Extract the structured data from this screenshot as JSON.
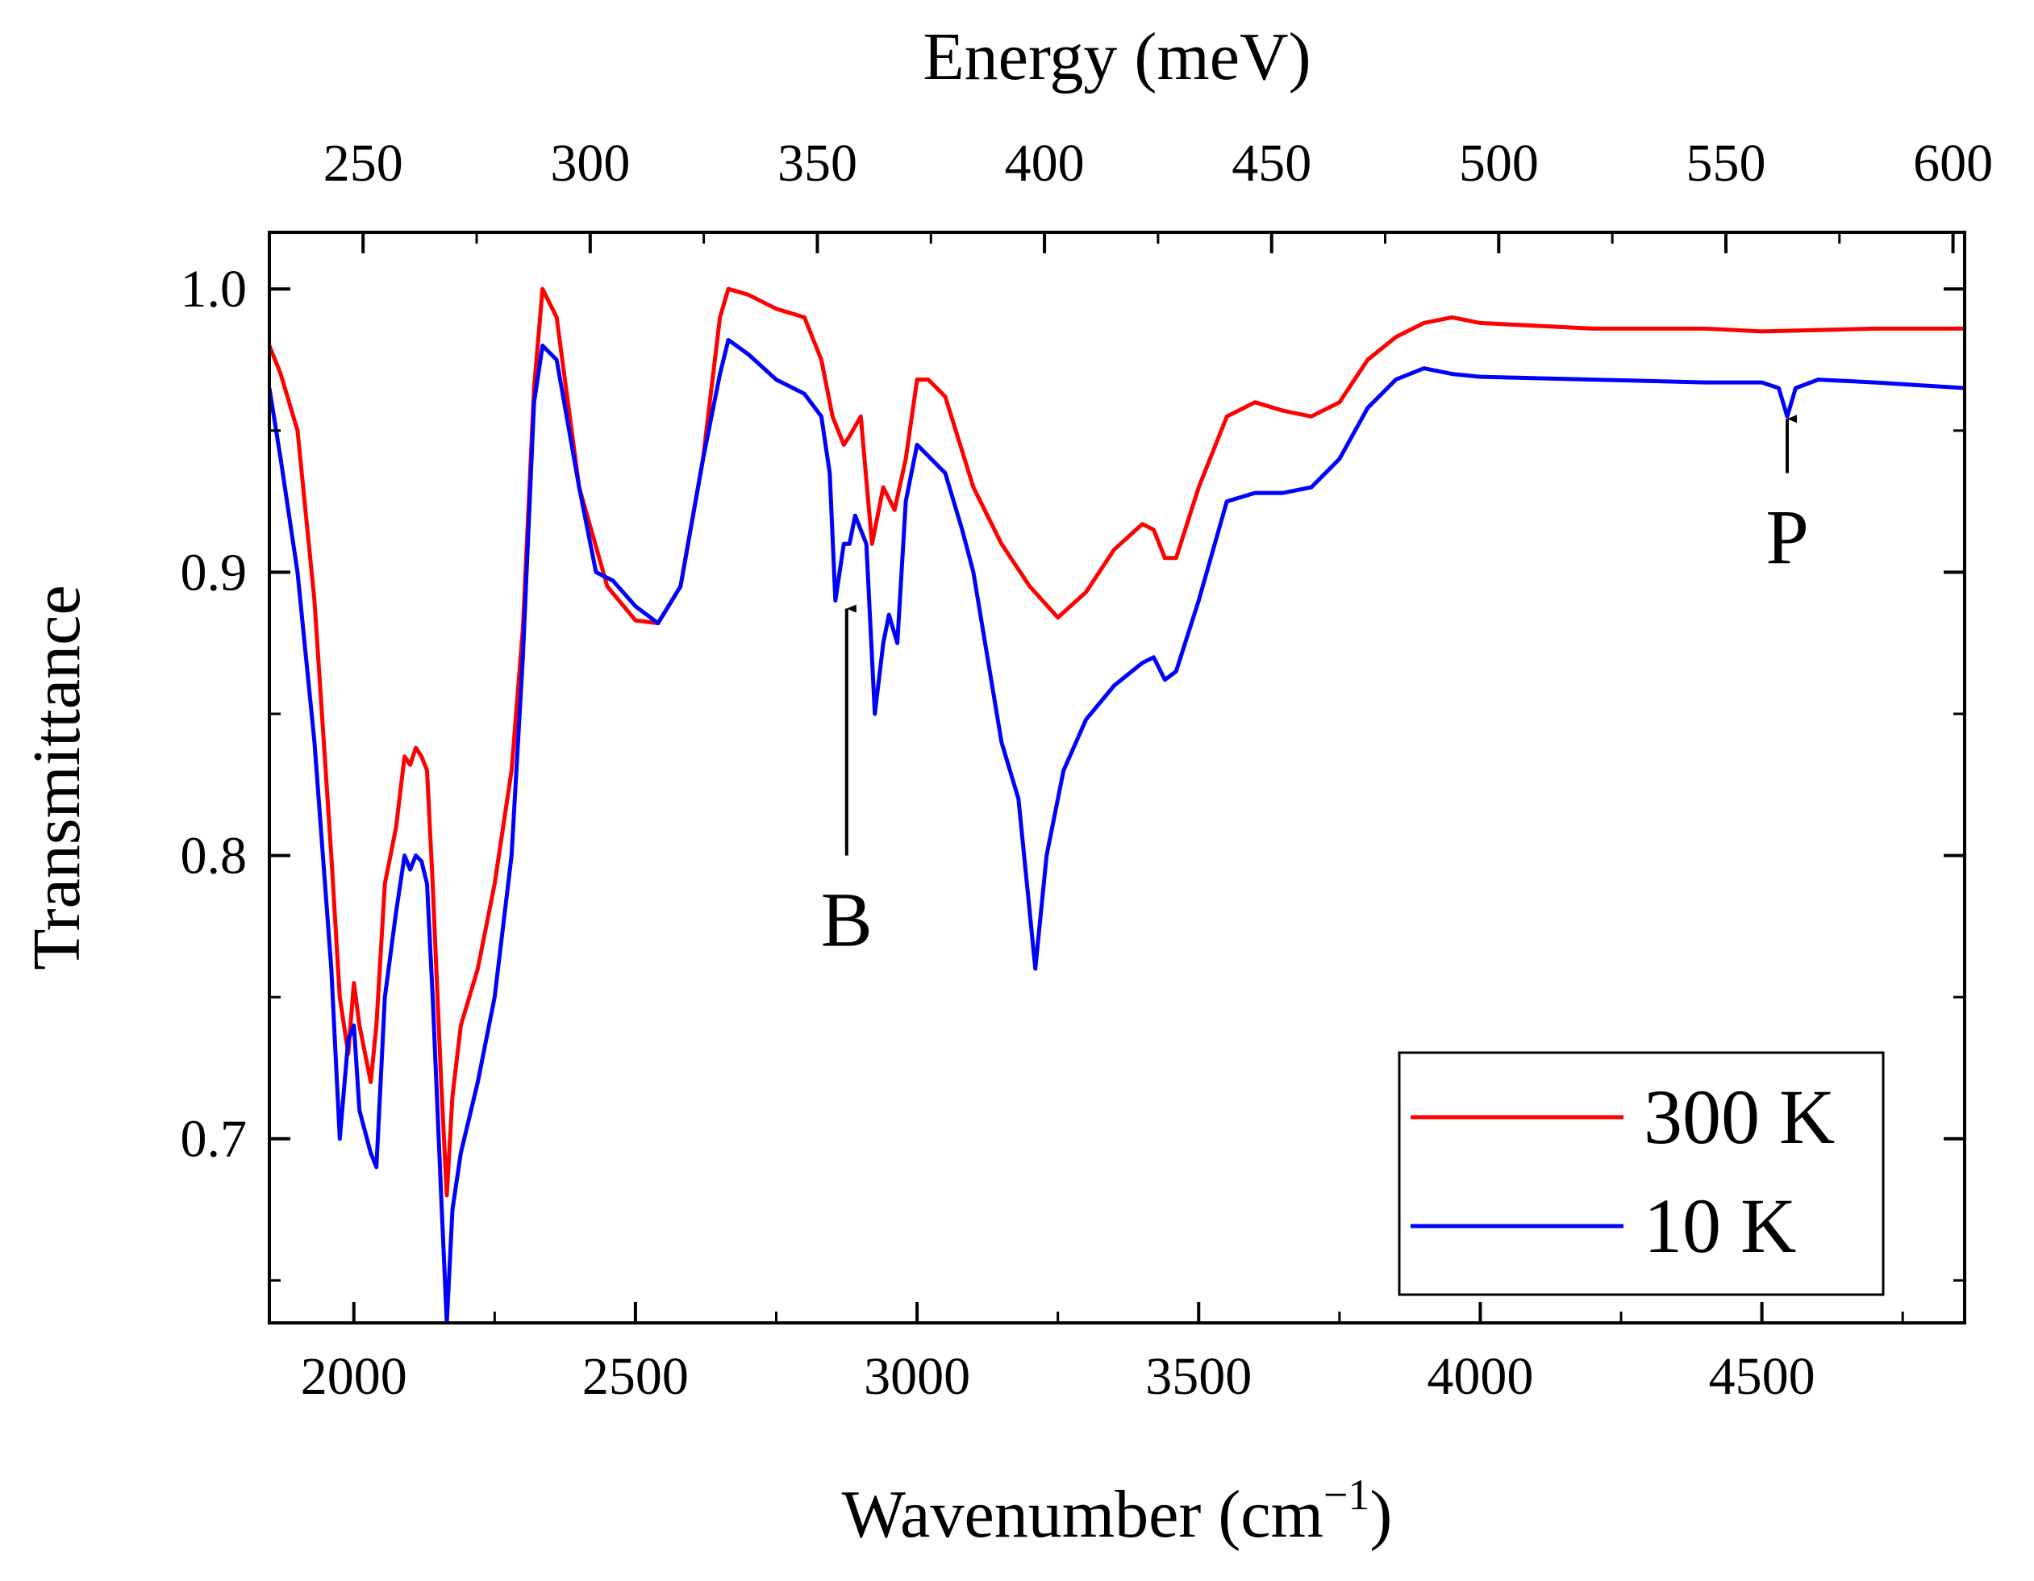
{
  "chart_data": {
    "type": "line",
    "xlabel": "Wavenumber (cm",
    "xlabel_sup": "−1",
    "xlabel_close": ")",
    "ylabel": "Transmittance",
    "top_axis_label": "Energy (meV)",
    "xlim": [
      1850,
      4860
    ],
    "ylim": [
      0.635,
      1.02
    ],
    "x_ticks": [
      2000,
      2500,
      3000,
      3500,
      4000,
      4500
    ],
    "x_tick_labels": [
      "2000",
      "2500",
      "3000",
      "3500",
      "4000",
      "4500"
    ],
    "y_ticks": [
      0.7,
      0.8,
      0.9,
      1.0
    ],
    "y_tick_labels": [
      "0.7",
      "0.8",
      "0.9",
      "1.0"
    ],
    "top_ticks_mev": [
      250,
      300,
      350,
      400,
      450,
      500,
      550,
      600
    ],
    "top_tick_labels": [
      "250",
      "300",
      "350",
      "400",
      "450",
      "500",
      "550",
      "600"
    ],
    "mev_per_wavenumber": 0.123984,
    "legend_position": "bottom-right",
    "annotations": [
      {
        "text": "B",
        "x": 2875,
        "arrow_from_y": 0.8,
        "arrow_to_y": 0.89
      },
      {
        "text": "P",
        "x": 4545,
        "arrow_from_y": 0.935,
        "arrow_to_y": 0.957
      }
    ],
    "series": [
      {
        "name": "300 K",
        "color": "#ff0000",
        "x": [
          1850,
          1870,
          1900,
          1930,
          1960,
          1975,
          1990,
          2000,
          2010,
          2030,
          2040,
          2055,
          2075,
          2090,
          2100,
          2110,
          2120,
          2130,
          2140,
          2155,
          2165,
          2175,
          2190,
          2220,
          2250,
          2280,
          2300,
          2320,
          2335,
          2360,
          2400,
          2450,
          2500,
          2540,
          2580,
          2620,
          2650,
          2665,
          2700,
          2750,
          2800,
          2830,
          2850,
          2870,
          2880,
          2900,
          2920,
          2940,
          2960,
          2980,
          3000,
          3020,
          3050,
          3100,
          3150,
          3200,
          3250,
          3300,
          3350,
          3400,
          3420,
          3440,
          3460,
          3500,
          3550,
          3600,
          3650,
          3700,
          3750,
          3800,
          3850,
          3900,
          3950,
          4000,
          4200,
          4400,
          4500,
          4700,
          4860
        ],
        "values": [
          0.98,
          0.97,
          0.95,
          0.89,
          0.8,
          0.75,
          0.73,
          0.755,
          0.74,
          0.72,
          0.74,
          0.79,
          0.81,
          0.835,
          0.832,
          0.838,
          0.835,
          0.83,
          0.79,
          0.72,
          0.68,
          0.715,
          0.74,
          0.76,
          0.79,
          0.83,
          0.88,
          0.965,
          1.0,
          0.99,
          0.93,
          0.895,
          0.883,
          0.882,
          0.895,
          0.94,
          0.99,
          1.0,
          0.998,
          0.993,
          0.99,
          0.975,
          0.955,
          0.945,
          0.948,
          0.955,
          0.91,
          0.93,
          0.922,
          0.94,
          0.968,
          0.968,
          0.962,
          0.93,
          0.91,
          0.895,
          0.884,
          0.893,
          0.908,
          0.917,
          0.915,
          0.905,
          0.905,
          0.93,
          0.955,
          0.96,
          0.957,
          0.955,
          0.96,
          0.975,
          0.983,
          0.988,
          0.99,
          0.988,
          0.986,
          0.986,
          0.985,
          0.986,
          0.986
        ]
      },
      {
        "name": "10 K",
        "color": "#0000ff",
        "x": [
          1850,
          1870,
          1900,
          1930,
          1960,
          1975,
          1990,
          2000,
          2010,
          2030,
          2040,
          2055,
          2075,
          2090,
          2100,
          2110,
          2120,
          2130,
          2140,
          2155,
          2165,
          2175,
          2190,
          2220,
          2250,
          2280,
          2300,
          2320,
          2335,
          2360,
          2400,
          2430,
          2460,
          2500,
          2540,
          2580,
          2620,
          2650,
          2665,
          2700,
          2750,
          2800,
          2830,
          2845,
          2855,
          2870,
          2880,
          2890,
          2910,
          2925,
          2940,
          2950,
          2965,
          2980,
          3000,
          3050,
          3080,
          3100,
          3150,
          3180,
          3200,
          3210,
          3230,
          3260,
          3300,
          3350,
          3400,
          3420,
          3440,
          3460,
          3500,
          3550,
          3600,
          3650,
          3700,
          3750,
          3800,
          3850,
          3900,
          3950,
          4000,
          4200,
          4400,
          4500,
          4530,
          4545,
          4560,
          4600,
          4700,
          4860
        ],
        "values": [
          0.965,
          0.94,
          0.9,
          0.84,
          0.76,
          0.7,
          0.735,
          0.74,
          0.71,
          0.695,
          0.69,
          0.75,
          0.78,
          0.8,
          0.795,
          0.8,
          0.798,
          0.79,
          0.75,
          0.68,
          0.635,
          0.675,
          0.695,
          0.72,
          0.75,
          0.8,
          0.87,
          0.96,
          0.98,
          0.975,
          0.93,
          0.9,
          0.897,
          0.888,
          0.882,
          0.895,
          0.94,
          0.97,
          0.982,
          0.977,
          0.968,
          0.963,
          0.955,
          0.935,
          0.89,
          0.91,
          0.91,
          0.92,
          0.91,
          0.85,
          0.875,
          0.885,
          0.875,
          0.925,
          0.945,
          0.935,
          0.915,
          0.9,
          0.84,
          0.82,
          0.78,
          0.76,
          0.8,
          0.83,
          0.848,
          0.86,
          0.868,
          0.87,
          0.862,
          0.865,
          0.89,
          0.925,
          0.928,
          0.928,
          0.93,
          0.94,
          0.958,
          0.968,
          0.972,
          0.97,
          0.969,
          0.968,
          0.967,
          0.967,
          0.965,
          0.955,
          0.965,
          0.968,
          0.967,
          0.965
        ]
      }
    ]
  }
}
